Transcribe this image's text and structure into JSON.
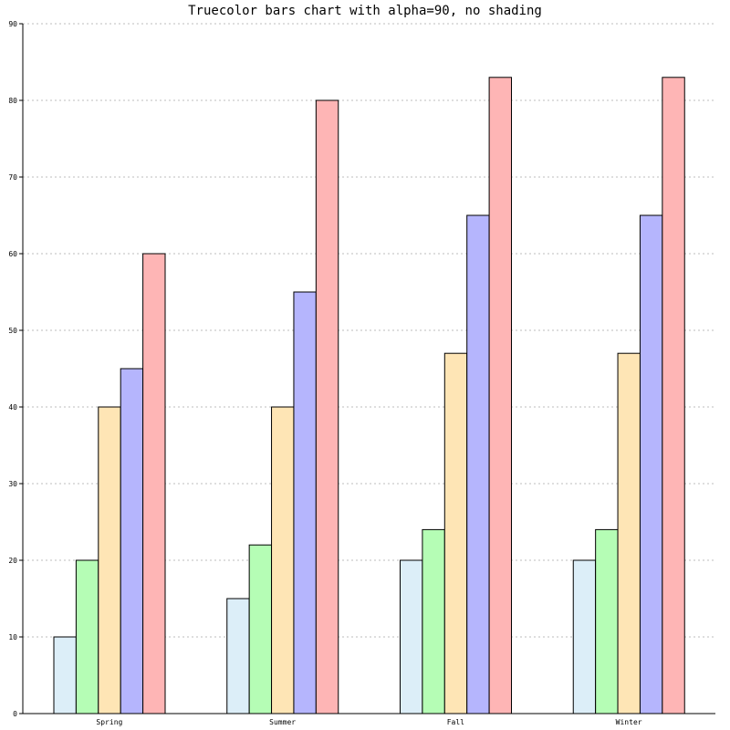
{
  "chart_data": {
    "type": "bar",
    "title": "Truecolor bars chart with alpha=90, no shading",
    "categories": [
      "Spring",
      "Summer",
      "Fall",
      "Winter"
    ],
    "series": [
      {
        "values": [
          10,
          15,
          20,
          20
        ],
        "color": "#dceef8"
      },
      {
        "values": [
          20,
          22,
          24,
          24
        ],
        "color": "#b5fdb5"
      },
      {
        "values": [
          40,
          40,
          47,
          47
        ],
        "color": "#fee5b5"
      },
      {
        "values": [
          45,
          55,
          65,
          65
        ],
        "color": "#b5b5fd"
      },
      {
        "values": [
          60,
          80,
          83,
          83
        ],
        "color": "#feb5b5"
      }
    ],
    "ylim": [
      0,
      90
    ],
    "yticks": [
      "0",
      "10",
      "20",
      "30",
      "40",
      "50",
      "60",
      "70",
      "80",
      "90"
    ],
    "grid": true,
    "xlabel": "",
    "ylabel": ""
  }
}
